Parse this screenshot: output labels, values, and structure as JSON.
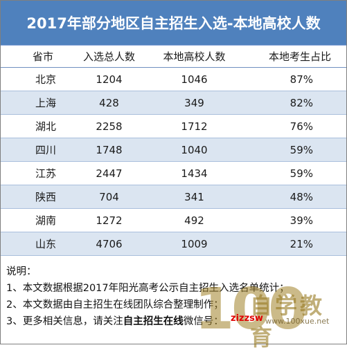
{
  "title": "2017年部分地区自主招生入选-本地高校人数",
  "table": {
    "headers": [
      "省市",
      "入选总人数",
      "本地高校人数",
      "本地考生占比"
    ],
    "rows": [
      [
        "北京",
        "1204",
        "1046",
        "87%"
      ],
      [
        "上海",
        "428",
        "349",
        "82%"
      ],
      [
        "湖北",
        "2258",
        "1712",
        "76%"
      ],
      [
        "四川",
        "1748",
        "1040",
        "59%"
      ],
      [
        "江苏",
        "2447",
        "1434",
        "59%"
      ],
      [
        "陕西",
        "704",
        "341",
        "48%"
      ],
      [
        "湖南",
        "1272",
        "492",
        "39%"
      ],
      [
        "山东",
        "4706",
        "1009",
        "21%"
      ]
    ]
  },
  "notes": {
    "heading": "说明：",
    "line1": "1、本文数据根据2017年阳光高考公示自主招生入选名单统计；",
    "line2": "2、本文数据由自主招生在线团队综合整理制作；",
    "line3_prefix": "3、更多相关信息，请关注",
    "line3_bold": "自主招生在线",
    "line3_suffix": "微信号："
  },
  "watermark": {
    "big_text": "100",
    "cn_text": "自学教育",
    "red_text": "zizzsw",
    "url_text": "www.100xue.net"
  }
}
